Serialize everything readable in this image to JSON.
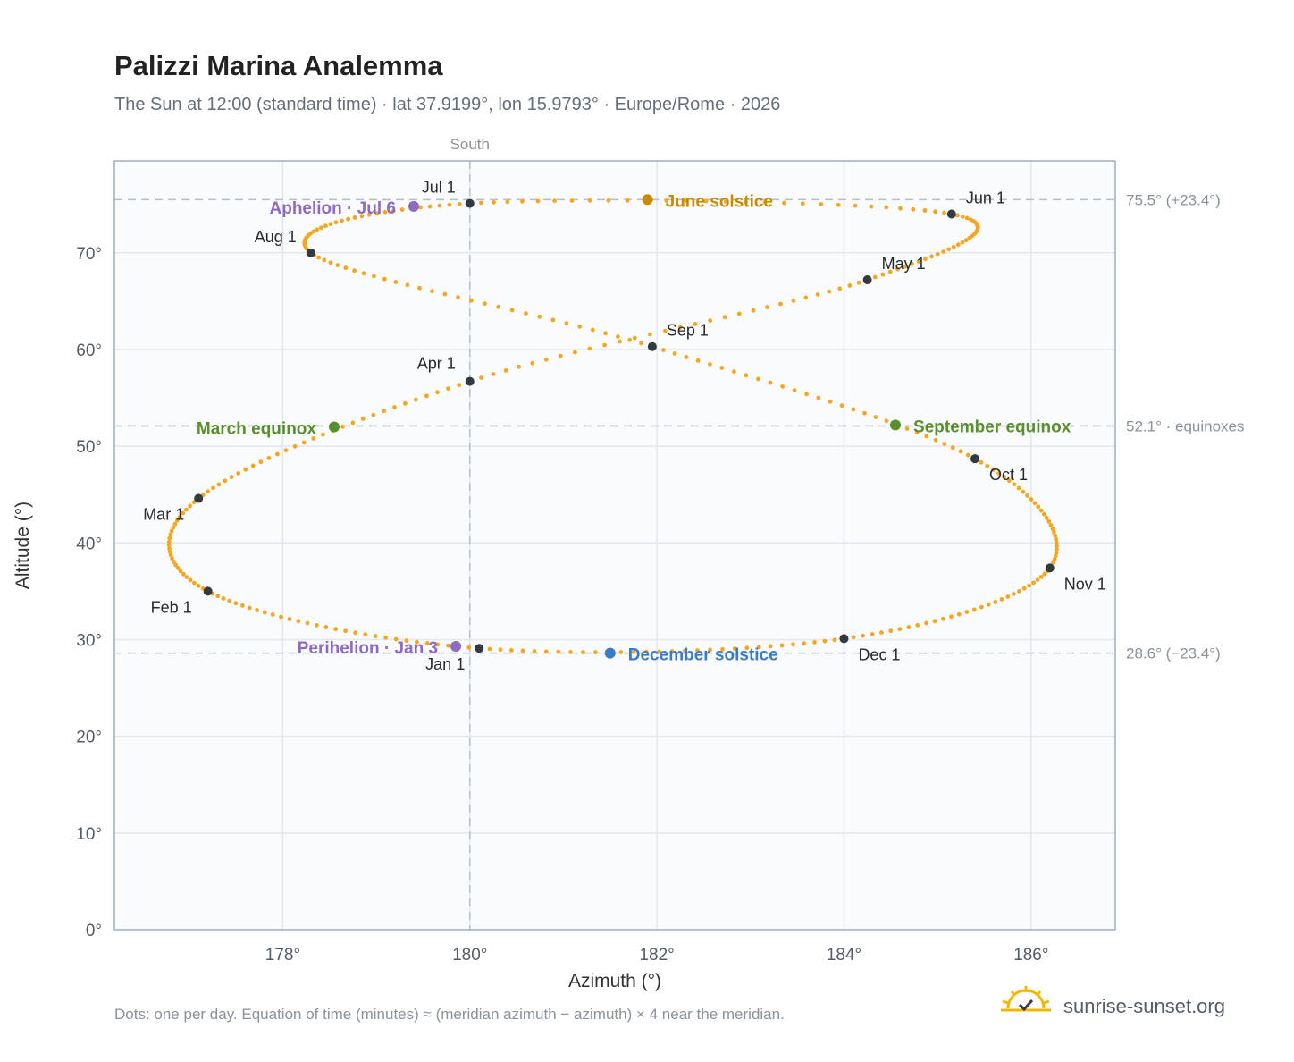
{
  "title": "Palizzi Marina Analemma",
  "subtitle": "The Sun at 12:00 (standard time) · lat 37.9199°, lon 15.9793° · Europe/Rome · 2026",
  "south_label": "South",
  "footnote": "Dots: one per day. Equation of time (minutes) ≈ (meridian azimuth − azimuth) × 4 near the meridian.",
  "brand": "sunrise-sunset.org",
  "colors": {
    "curve": "#f5a623",
    "month_marker": "#333a40",
    "june_solstice": "#c98a00",
    "december_solstice": "#3a7bc8",
    "equinox": "#5a8f2e",
    "apsis": "#8e6bbf",
    "reference_line": "#b8c2cc",
    "plot_background": "#f9fbfd",
    "grid": "#e3e8ee",
    "frame": "#a2adb9"
  },
  "chart_data": {
    "type": "scatter",
    "xlabel": "Azimuth (°)",
    "ylabel": "Altitude (°)",
    "xlim": [
      176.2,
      186.9
    ],
    "ylim": [
      0,
      79.5
    ],
    "xticks": [
      {
        "value": 178,
        "label": "178°"
      },
      {
        "value": 180,
        "label": "180°"
      },
      {
        "value": 182,
        "label": "182°"
      },
      {
        "value": 184,
        "label": "184°"
      },
      {
        "value": 186,
        "label": "186°"
      }
    ],
    "yticks": [
      {
        "value": 0,
        "label": "0°"
      },
      {
        "value": 10,
        "label": "10°"
      },
      {
        "value": 20,
        "label": "20°"
      },
      {
        "value": 30,
        "label": "30°"
      },
      {
        "value": 40,
        "label": "40°"
      },
      {
        "value": 50,
        "label": "50°"
      },
      {
        "value": 60,
        "label": "60°"
      },
      {
        "value": 70,
        "label": "70°"
      }
    ],
    "grid": true,
    "meridian_azimuth": 180,
    "reference_lines": [
      {
        "altitude": 75.5,
        "label": "75.5° (+23.4°)"
      },
      {
        "altitude": 52.1,
        "label": "52.1° · equinoxes"
      },
      {
        "altitude": 28.6,
        "label": "28.6° (−23.4°)"
      }
    ],
    "daily_path": [
      {
        "date": "Jan 1",
        "az": 180.1,
        "alt": 29.1
      },
      {
        "date": "Feb 1",
        "az": 177.2,
        "alt": 35.0
      },
      {
        "date": "Mar 1",
        "az": 177.1,
        "alt": 44.6
      },
      {
        "date": "Apr 1",
        "az": 180.0,
        "alt": 56.7
      },
      {
        "date": "May 1",
        "az": 184.25,
        "alt": 67.2
      },
      {
        "date": "Jun 1",
        "az": 185.15,
        "alt": 74.0
      },
      {
        "date": "Jul 1",
        "az": 180.0,
        "alt": 75.1
      },
      {
        "date": "Aug 1",
        "az": 178.3,
        "alt": 70.0
      },
      {
        "date": "Sep 1",
        "az": 181.95,
        "alt": 60.3
      },
      {
        "date": "Oct 1",
        "az": 185.4,
        "alt": 48.7
      },
      {
        "date": "Nov 1",
        "az": 186.2,
        "alt": 37.4
      },
      {
        "date": "Dec 1",
        "az": 184.0,
        "alt": 30.1
      }
    ],
    "month_markers": [
      {
        "label": "Jan 1",
        "az": 180.1,
        "alt": 29.1
      },
      {
        "label": "Feb 1",
        "az": 177.2,
        "alt": 35.0
      },
      {
        "label": "Mar 1",
        "az": 177.1,
        "alt": 44.6
      },
      {
        "label": "Apr 1",
        "az": 180.0,
        "alt": 56.7
      },
      {
        "label": "May 1",
        "az": 184.25,
        "alt": 67.2
      },
      {
        "label": "Jun 1",
        "az": 185.15,
        "alt": 74.0
      },
      {
        "label": "Jul 1",
        "az": 180.0,
        "alt": 75.1
      },
      {
        "label": "Aug 1",
        "az": 178.3,
        "alt": 70.0
      },
      {
        "label": "Sep 1",
        "az": 181.95,
        "alt": 60.3
      },
      {
        "label": "Oct 1",
        "az": 185.4,
        "alt": 48.7
      },
      {
        "label": "Nov 1",
        "az": 186.2,
        "alt": 37.4
      },
      {
        "label": "Dec 1",
        "az": 184.0,
        "alt": 30.1
      }
    ],
    "events": [
      {
        "label": "June solstice",
        "az": 181.9,
        "alt": 75.5,
        "kind": "june_solstice"
      },
      {
        "label": "December solstice",
        "az": 181.5,
        "alt": 28.6,
        "kind": "december_solstice"
      },
      {
        "label": "March equinox",
        "az": 178.55,
        "alt": 52.0,
        "kind": "equinox"
      },
      {
        "label": "September equinox",
        "az": 184.55,
        "alt": 52.2,
        "kind": "equinox"
      },
      {
        "label": "Aphelion · Jul 6",
        "az": 179.4,
        "alt": 74.8,
        "kind": "apsis"
      },
      {
        "label": "Perihelion · Jan 3",
        "az": 179.85,
        "alt": 29.3,
        "kind": "apsis"
      }
    ]
  }
}
